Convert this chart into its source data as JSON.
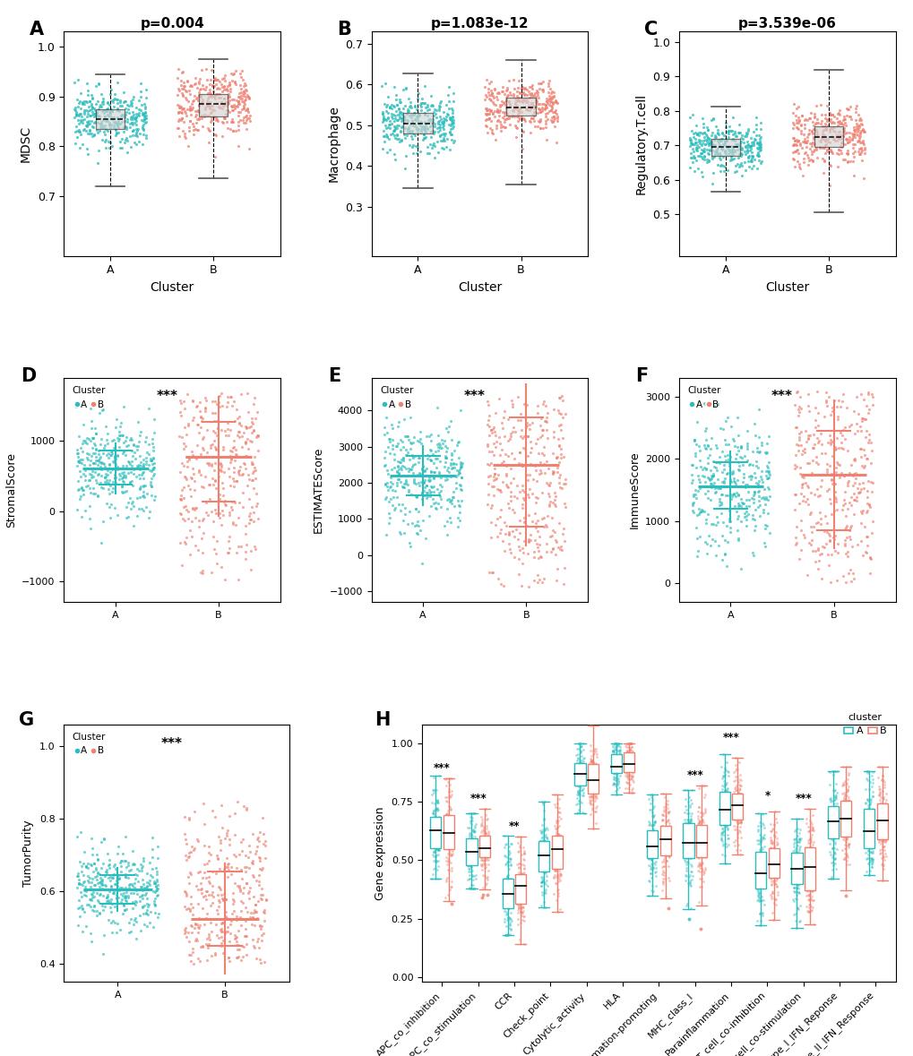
{
  "color_A": "#2BBDBD",
  "color_B": "#F08070",
  "panel_A": {
    "title": "p=0.004",
    "ylabel": "MDSC",
    "xlabel": "Cluster",
    "ylim": [
      0.58,
      1.03
    ],
    "yticks": [
      0.7,
      0.8,
      0.9,
      1.0
    ],
    "cluster_A": {
      "median": 0.855,
      "q1": 0.835,
      "q3": 0.875,
      "whisker_lo": 0.72,
      "whisker_hi": 0.945,
      "n": 350
    },
    "cluster_B": {
      "median": 0.885,
      "q1": 0.86,
      "q3": 0.905,
      "whisker_lo": 0.735,
      "whisker_hi": 0.975,
      "n": 350
    }
  },
  "panel_B": {
    "title": "p=1.083e-12",
    "ylabel": "Macrophage",
    "xlabel": "Cluster",
    "ylim": [
      0.18,
      0.73
    ],
    "yticks": [
      0.3,
      0.4,
      0.5,
      0.6,
      0.7
    ],
    "cluster_A": {
      "median": 0.505,
      "q1": 0.48,
      "q3": 0.53,
      "whisker_lo": 0.345,
      "whisker_hi": 0.628,
      "n": 350
    },
    "cluster_B": {
      "median": 0.545,
      "q1": 0.525,
      "q3": 0.568,
      "whisker_lo": 0.355,
      "whisker_hi": 0.66,
      "n": 350
    }
  },
  "panel_C": {
    "title": "p=3.539e-06",
    "ylabel": "Regulatory.T.cell",
    "xlabel": "Cluster",
    "ylim": [
      0.38,
      1.03
    ],
    "yticks": [
      0.5,
      0.6,
      0.7,
      0.8,
      0.9,
      1.0
    ],
    "cluster_A": {
      "median": 0.695,
      "q1": 0.67,
      "q3": 0.718,
      "whisker_lo": 0.565,
      "whisker_hi": 0.812,
      "n": 350
    },
    "cluster_B": {
      "median": 0.725,
      "q1": 0.695,
      "q3": 0.755,
      "whisker_lo": 0.505,
      "whisker_hi": 0.918,
      "n": 350
    }
  },
  "panel_D": {
    "sig": "***",
    "legend_title": "Cluster",
    "ylabel": "StromalScore",
    "ylim": [
      -1300,
      1900
    ],
    "yticks": [
      -1000,
      0,
      1000
    ],
    "cluster_A": {
      "mean": 610,
      "q1": 380,
      "q3": 860,
      "lo": -700,
      "hi": 1550,
      "n": 350
    },
    "cluster_B": {
      "mean": 780,
      "q1": 130,
      "q3": 1280,
      "lo": -1100,
      "hi": 1700,
      "n": 350
    }
  },
  "panel_E": {
    "sig": "***",
    "legend_title": "Cluster",
    "ylabel": "ESTIMATEScore",
    "ylim": [
      -1300,
      4900
    ],
    "yticks": [
      -1000,
      0,
      1000,
      2000,
      3000,
      4000
    ],
    "cluster_A": {
      "mean": 2200,
      "q1": 1650,
      "q3": 2750,
      "lo": -600,
      "hi": 4100,
      "n": 350
    },
    "cluster_B": {
      "mean": 2500,
      "q1": 800,
      "q3": 3800,
      "lo": -900,
      "hi": 4400,
      "n": 350
    }
  },
  "panel_F": {
    "sig": "***",
    "legend_title": "Cluster",
    "ylabel": "ImmuneScore",
    "ylim": [
      -300,
      3300
    ],
    "yticks": [
      0,
      1000,
      2000,
      3000
    ],
    "cluster_A": {
      "mean": 1560,
      "q1": 1200,
      "q3": 1950,
      "lo": 200,
      "hi": 2900,
      "n": 350
    },
    "cluster_B": {
      "mean": 1750,
      "q1": 850,
      "q3": 2450,
      "lo": 0,
      "hi": 3100,
      "n": 350
    }
  },
  "panel_G": {
    "sig": "***",
    "legend_title": "Cluster",
    "ylabel": "TumorPurity",
    "ylim": [
      0.35,
      1.06
    ],
    "yticks": [
      0.4,
      0.6,
      0.8,
      1.0
    ],
    "cluster_A": {
      "mean": 0.605,
      "q1": 0.565,
      "q3": 0.645,
      "lo": 0.42,
      "hi": 0.77,
      "n": 350
    },
    "cluster_B": {
      "mean": 0.525,
      "q1": 0.45,
      "q3": 0.655,
      "lo": 0.4,
      "hi": 0.85,
      "n": 350
    }
  },
  "panel_H": {
    "categories": [
      "APC_co_inhibition",
      "APC_co_stimulation",
      "CCR",
      "Check_point",
      "Cytolytic_activity",
      "HLA",
      "Inflammation-promoting",
      "MHC_class_I",
      "Parainflammation",
      "T_cell_co-inhibition",
      "T_cell_co-stimulation",
      "Type_I_IFN_Reponse",
      "Type_II_IFN_Response"
    ],
    "sig_labels": [
      "***",
      "***",
      "**",
      "",
      "",
      "",
      "",
      "***",
      "***",
      "*",
      "***",
      "",
      ""
    ],
    "cluster_A": {
      "medians": [
        0.62,
        0.53,
        0.36,
        0.52,
        0.86,
        0.91,
        0.57,
        0.58,
        0.72,
        0.47,
        0.46,
        0.65,
        0.65
      ],
      "q1": [
        0.55,
        0.47,
        0.3,
        0.45,
        0.82,
        0.88,
        0.5,
        0.5,
        0.66,
        0.4,
        0.39,
        0.58,
        0.58
      ],
      "q3": [
        0.7,
        0.58,
        0.44,
        0.59,
        0.91,
        0.95,
        0.63,
        0.65,
        0.78,
        0.54,
        0.54,
        0.73,
        0.73
      ],
      "wlo": [
        0.42,
        0.38,
        0.18,
        0.3,
        0.7,
        0.78,
        0.35,
        0.25,
        0.48,
        0.24,
        0.2,
        0.42,
        0.42
      ],
      "whi": [
        0.8,
        0.7,
        0.57,
        0.75,
        1.0,
        1.0,
        0.78,
        0.8,
        0.96,
        0.7,
        0.7,
        0.88,
        0.88
      ]
    },
    "cluster_B": {
      "medians": [
        0.63,
        0.55,
        0.38,
        0.54,
        0.85,
        0.91,
        0.59,
        0.59,
        0.73,
        0.5,
        0.47,
        0.66,
        0.66
      ],
      "q1": [
        0.56,
        0.5,
        0.33,
        0.47,
        0.8,
        0.87,
        0.52,
        0.52,
        0.68,
        0.43,
        0.4,
        0.6,
        0.6
      ],
      "q3": [
        0.72,
        0.6,
        0.46,
        0.61,
        0.9,
        0.95,
        0.65,
        0.66,
        0.8,
        0.57,
        0.55,
        0.75,
        0.75
      ],
      "wlo": [
        0.25,
        0.14,
        0.08,
        0.2,
        0.6,
        0.7,
        0.28,
        0.18,
        0.4,
        0.18,
        0.15,
        0.35,
        0.35
      ],
      "whi": [
        0.85,
        0.72,
        0.6,
        0.78,
        1.0,
        1.0,
        0.8,
        0.82,
        0.98,
        0.73,
        0.72,
        0.9,
        0.9
      ]
    },
    "ylabel": "Gene expression",
    "ylim": [
      -0.02,
      1.08
    ],
    "yticks": [
      0.0,
      0.25,
      0.5,
      0.75,
      1.0
    ]
  }
}
